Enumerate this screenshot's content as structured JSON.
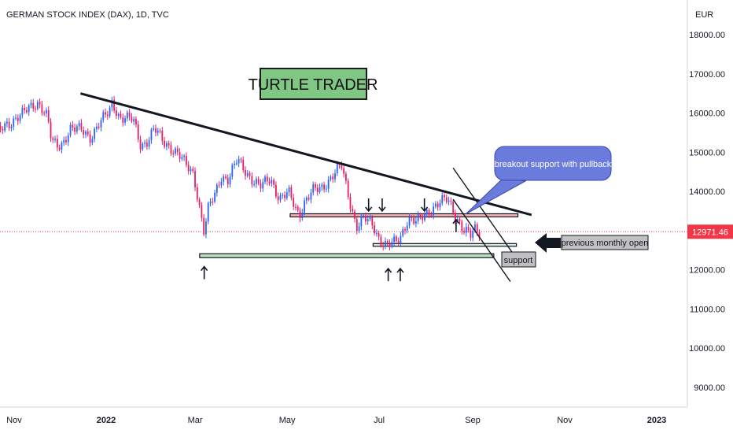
{
  "header": {
    "title": "GERMAN STOCK INDEX (DAX), 1D, TVC",
    "currency": "EUR"
  },
  "chart_data": {
    "type": "candlestick",
    "title": "GERMAN STOCK INDEX (DAX), 1D, TVC",
    "ylabel": "EUR",
    "ylim": [
      8500,
      18800
    ],
    "yticks": [
      "18000.00",
      "17000.00",
      "16000.00",
      "15000.00",
      "14000.00",
      "13000.00",
      "12000.00",
      "11000.00",
      "10000.00",
      "9000.00"
    ],
    "ytick_values": [
      18000,
      17000,
      16000,
      15000,
      14000,
      13000,
      12000,
      11000,
      10000,
      9000
    ],
    "xticks": [
      "Nov",
      "2022",
      "Mar",
      "May",
      "Jul",
      "Sep",
      "Nov",
      "2023"
    ],
    "xtick_dates": [
      "2021-11-01",
      "2022-01-01",
      "2022-03-01",
      "2022-05-01",
      "2022-07-01",
      "2022-09-01",
      "2022-11-01",
      "2023-01-01"
    ],
    "current_price": {
      "value": 12971.46,
      "label": "12971.46"
    },
    "series": [
      {
        "type": "close-path",
        "points": [
          [
            "2021-10-20",
            15500
          ],
          [
            "2021-10-25",
            15600
          ],
          [
            "2021-10-29",
            15700
          ],
          [
            "2021-11-03",
            15950
          ],
          [
            "2021-11-08",
            16050
          ],
          [
            "2021-11-12",
            16100
          ],
          [
            "2021-11-17",
            16250
          ],
          [
            "2021-11-19",
            16200
          ],
          [
            "2021-11-23",
            15950
          ],
          [
            "2021-11-26",
            15250
          ],
          [
            "2021-11-30",
            15100
          ],
          [
            "2021-12-03",
            15200
          ],
          [
            "2021-12-08",
            15650
          ],
          [
            "2021-12-13",
            15600
          ],
          [
            "2021-12-17",
            15500
          ],
          [
            "2021-12-21",
            15350
          ],
          [
            "2021-12-27",
            15750
          ],
          [
            "2022-01-03",
            16000
          ],
          [
            "2022-01-05",
            16250
          ],
          [
            "2022-01-10",
            15900
          ],
          [
            "2022-01-14",
            15900
          ],
          [
            "2022-01-19",
            15800
          ],
          [
            "2022-01-24",
            15150
          ],
          [
            "2022-01-28",
            15300
          ],
          [
            "2022-02-02",
            15600
          ],
          [
            "2022-02-08",
            15250
          ],
          [
            "2022-02-14",
            15100
          ],
          [
            "2022-02-18",
            14950
          ],
          [
            "2022-02-23",
            14650
          ],
          [
            "2022-02-28",
            14450
          ],
          [
            "2022-03-03",
            13800
          ],
          [
            "2022-03-07",
            12950
          ],
          [
            "2022-03-10",
            13600
          ],
          [
            "2022-03-14",
            13900
          ],
          [
            "2022-03-18",
            14400
          ],
          [
            "2022-03-23",
            14300
          ],
          [
            "2022-03-29",
            14800
          ],
          [
            "2022-04-04",
            14500
          ],
          [
            "2022-04-08",
            14300
          ],
          [
            "2022-04-13",
            14100
          ],
          [
            "2022-04-20",
            14350
          ],
          [
            "2022-04-26",
            13800
          ],
          [
            "2022-05-02",
            13950
          ],
          [
            "2022-05-09",
            13400
          ],
          [
            "2022-05-12",
            13700
          ],
          [
            "2022-05-18",
            14000
          ],
          [
            "2022-05-24",
            14100
          ],
          [
            "2022-05-31",
            14400
          ],
          [
            "2022-06-06",
            14650
          ],
          [
            "2022-06-10",
            14000
          ],
          [
            "2022-06-16",
            13100
          ],
          [
            "2022-06-21",
            13300
          ],
          [
            "2022-06-27",
            13150
          ],
          [
            "2022-07-01",
            12800
          ],
          [
            "2022-07-06",
            12600
          ],
          [
            "2022-07-12",
            12700
          ],
          [
            "2022-07-15",
            12850
          ],
          [
            "2022-07-20",
            13300
          ],
          [
            "2022-07-26",
            13200
          ],
          [
            "2022-08-01",
            13450
          ],
          [
            "2022-08-08",
            13650
          ],
          [
            "2022-08-15",
            13800
          ],
          [
            "2022-08-17",
            13700
          ],
          [
            "2022-08-22",
            13300
          ],
          [
            "2022-08-26",
            13000
          ],
          [
            "2022-08-31",
            12850
          ],
          [
            "2022-09-02",
            13050
          ],
          [
            "2022-09-06",
            12950
          ]
        ]
      }
    ],
    "annotations": [
      {
        "type": "trendline",
        "name": "descending-resistance",
        "from": [
          "2021-12-15",
          16500
        ],
        "to": [
          "2022-10-10",
          13400
        ]
      },
      {
        "type": "channel-line",
        "name": "channel-upper",
        "from": [
          "2022-08-19",
          14600
        ],
        "to": [
          "2022-09-28",
          12400
        ]
      },
      {
        "type": "channel-line",
        "name": "channel-lower",
        "from": [
          "2022-08-19",
          13800
        ],
        "to": [
          "2022-09-26",
          11700
        ]
      },
      {
        "type": "zone",
        "name": "resistance-zone",
        "from": "2022-05-03",
        "to": "2022-10-01",
        "y": [
          13350,
          13430
        ],
        "color": "#ef9a9a"
      },
      {
        "type": "zone",
        "name": "previous-monthly-open-zone",
        "from": "2022-06-27",
        "to": "2022-09-30",
        "y": [
          12600,
          12670
        ],
        "color": "#c8e6c9"
      },
      {
        "type": "zone",
        "name": "support-zone",
        "from": "2022-03-04",
        "to": "2022-09-15",
        "y": [
          12310,
          12410
        ],
        "color": "#a5d6a7"
      },
      {
        "type": "arrow-down",
        "dates": [
          "2022-06-24",
          "2022-07-03",
          "2022-07-31"
        ],
        "value": 13500
      },
      {
        "type": "arrow-up",
        "dates": [
          "2022-03-07",
          "2022-07-07",
          "2022-07-15",
          "2022-08-21"
        ],
        "value": 12000
      },
      {
        "type": "label",
        "name": "turtle-trader-label",
        "text": "TURTLE TRADER"
      },
      {
        "type": "callout",
        "name": "breakout-callout",
        "text": "breakout support with pullback"
      },
      {
        "type": "label",
        "name": "previous-monthly-open-label",
        "text": "previous monthly open"
      },
      {
        "type": "label",
        "name": "support-label",
        "text": "support"
      }
    ]
  },
  "colors": {
    "up": "#2962ff",
    "down": "#e91e63",
    "price_line": "#f23645",
    "trend": "#131722"
  }
}
